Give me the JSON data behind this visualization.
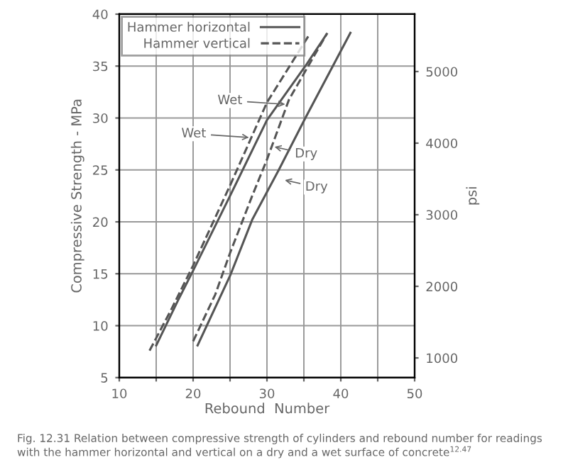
{
  "chart_data": {
    "type": "line",
    "xlabel": "Rebound  Number",
    "ylabel": "Compressive Strength - MPa",
    "y2label": "psi",
    "xlim": [
      10,
      50
    ],
    "xticks": [
      10,
      {
        "value": 15,
        "label": null
      },
      20,
      {
        "value": 25,
        "label": null
      },
      30,
      {
        "value": 35,
        "label": null
      },
      40,
      {
        "value": 45,
        "label": null
      },
      50
    ],
    "ylim": [
      5,
      40
    ],
    "yticks": [
      5,
      10,
      15,
      20,
      25,
      30,
      35,
      40
    ],
    "y2lim": [
      725.2,
      5801.5
    ],
    "y2ticks": [
      1000,
      2000,
      3000,
      4000,
      5000
    ],
    "grid": true,
    "legend": "top left",
    "marker": "none",
    "series": [
      {
        "name": "Hammer horizontal",
        "color": "#555555",
        "line_style": "solid",
        "x": [
          15,
          18,
          20,
          25,
          30,
          35.2,
          38.1
        ],
        "values": [
          8.1,
          12.5,
          15.3,
          22.5,
          29.8,
          35,
          38.1
        ]
      },
      {
        "name": "Hammer vertical",
        "color": "#555555",
        "line_style": "dashed",
        "x": [
          14.1,
          17,
          20,
          25,
          30,
          35.8
        ],
        "values": [
          7.6,
          11.5,
          15.8,
          23.5,
          31.5,
          38.1
        ]
      },
      {
        "color": "#555555",
        "line_style": "dashed",
        "x": [
          20,
          23,
          25,
          28,
          30,
          33,
          38.1
        ],
        "values": [
          8.5,
          13,
          17,
          22.5,
          26,
          31.8,
          38.1
        ]
      },
      {
        "color": "#555555",
        "line_style": "solid",
        "x": [
          20.6,
          25,
          28,
          31.6,
          35.2,
          41.3
        ],
        "values": [
          8.1,
          14.8,
          20.2,
          25,
          30,
          38.2
        ]
      }
    ],
    "annotations": [
      {
        "text": "Wet",
        "x": 33.0,
        "y": 31.3
      },
      {
        "text": "Wet",
        "x": 28.1,
        "y": 28.1
      },
      {
        "text": "Dry",
        "x": 30.5,
        "y": 27.3
      },
      {
        "text": "Dry",
        "x": 31.9,
        "y": 24.1
      },
      "Fig. 12.31 Relation between compressive strength of cylinders and rebound number for readings with the hammer horizontal and vertical on a dry and a wet surface of concrete$^{12.47}$"
    ]
  }
}
